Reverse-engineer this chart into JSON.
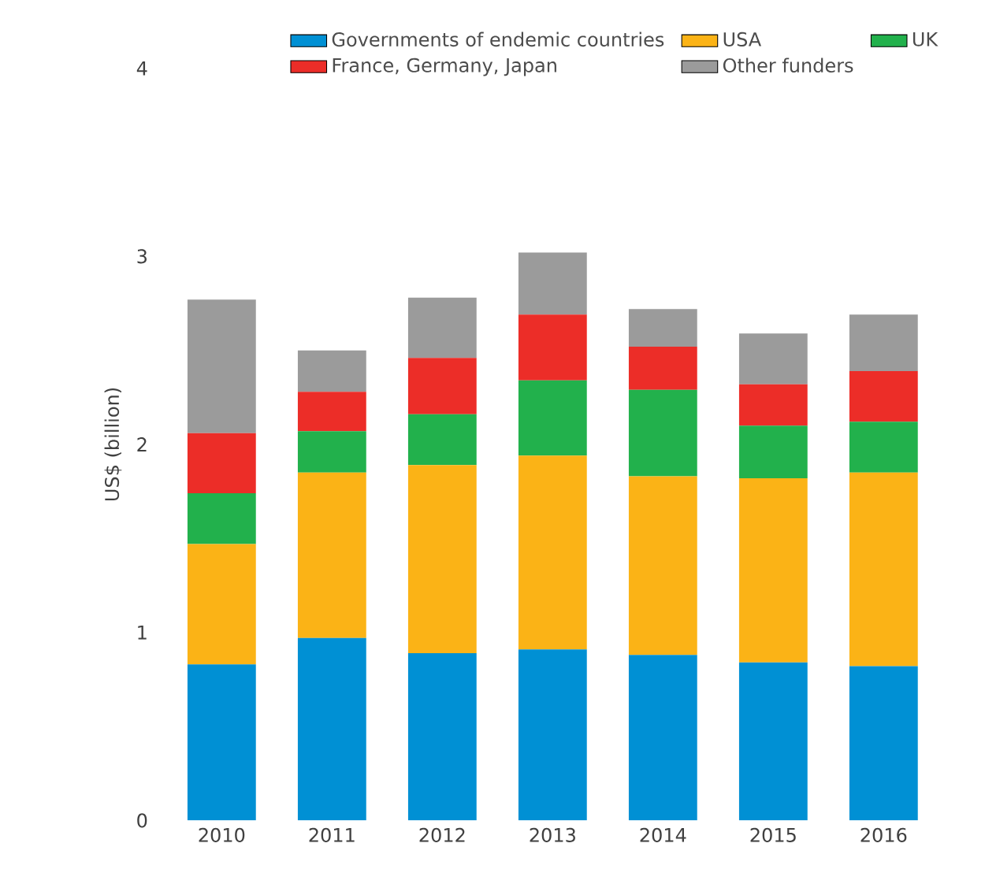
{
  "chart_data": {
    "type": "bar",
    "stacked": true,
    "ylabel": "US$ (billion)",
    "legend": "top",
    "categories": [
      "2010",
      "2011",
      "2012",
      "2013",
      "2014",
      "2015",
      "2016"
    ],
    "ylim": [
      0,
      4
    ],
    "yticks": [
      0,
      1,
      2,
      3,
      4
    ],
    "series": [
      {
        "name": "Governments of endemic countries",
        "color": "#0090d4",
        "values": [
          0.83,
          0.97,
          0.89,
          0.91,
          0.88,
          0.84,
          0.82
        ]
      },
      {
        "name": "USA",
        "color": "#fbb316",
        "values": [
          0.64,
          0.88,
          1.0,
          1.03,
          0.95,
          0.98,
          1.03
        ]
      },
      {
        "name": "UK",
        "color": "#22b14c",
        "values": [
          0.27,
          0.22,
          0.27,
          0.4,
          0.46,
          0.28,
          0.27
        ]
      },
      {
        "name": "France, Germany, Japan",
        "color": "#ec2d28",
        "values": [
          0.32,
          0.21,
          0.3,
          0.35,
          0.23,
          0.22,
          0.27
        ]
      },
      {
        "name": "Other funders",
        "color": "#9b9b9b",
        "values": [
          0.71,
          0.22,
          0.32,
          0.33,
          0.2,
          0.27,
          0.3
        ]
      }
    ]
  }
}
